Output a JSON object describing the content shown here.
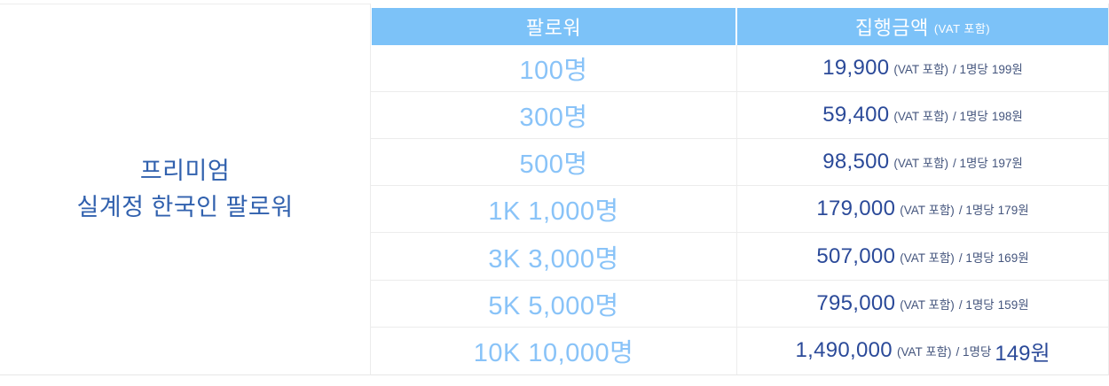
{
  "label": {
    "line1": "프리미엄",
    "line2": "실계정 한국인 팔로워"
  },
  "header": {
    "col_follower": "팔로워",
    "col_amount": "집행금액",
    "col_amount_note": "(VAT 포함)"
  },
  "rows": [
    {
      "followers": "100명",
      "price": "19,900",
      "vat_note": "(VAT 포함)",
      "per_note": "/ 1명당",
      "per_value": "199원"
    },
    {
      "followers": "300명",
      "price": "59,400",
      "vat_note": "(VAT 포함)",
      "per_note": "/ 1명당",
      "per_value": "198원"
    },
    {
      "followers": "500명",
      "price": "98,500",
      "vat_note": "(VAT 포함)",
      "per_note": "/ 1명당",
      "per_value": "197원"
    },
    {
      "followers": "1K 1,000명",
      "price": "179,000",
      "vat_note": "(VAT 포함)",
      "per_note": "/ 1명당",
      "per_value": "179원"
    },
    {
      "followers": "3K 3,000명",
      "price": "507,000",
      "vat_note": "(VAT 포함)",
      "per_note": "/ 1명당",
      "per_value": "169원"
    },
    {
      "followers": "5K 5,000명",
      "price": "795,000",
      "vat_note": "(VAT 포함)",
      "per_note": "/ 1명당",
      "per_value": "159원"
    },
    {
      "followers": "10K 10,000명",
      "price": "1,490,000",
      "vat_note": "(VAT 포함)",
      "per_note": "/ 1명당",
      "per_value": "149원"
    }
  ],
  "colors": {
    "header_bg": "#7cc2f8",
    "header_text": "#ffffff",
    "follower_text": "#89c3f8",
    "price_text": "#2b4a99",
    "note_text": "#44557d",
    "label_text": "#3161ae",
    "border": "#ececec"
  }
}
